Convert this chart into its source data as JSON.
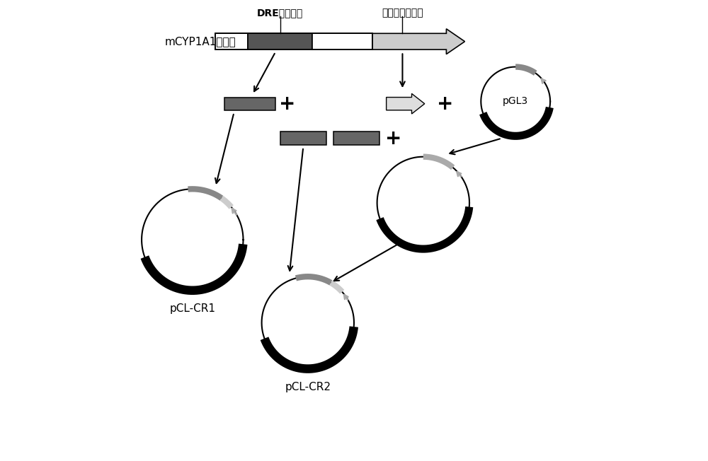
{
  "bg_color": "#ffffff",
  "title_label": "mCYP1A1启动子",
  "dre_label": "DRE富集区段",
  "promoter_label": "启动子基本区段",
  "pGL3_label": "pGL3",
  "pCL_CR1_label": "pCL-CR1",
  "pCL_CR2_label": "pCL-CR2",
  "figsize": [
    10.0,
    6.52
  ],
  "dpi": 100
}
